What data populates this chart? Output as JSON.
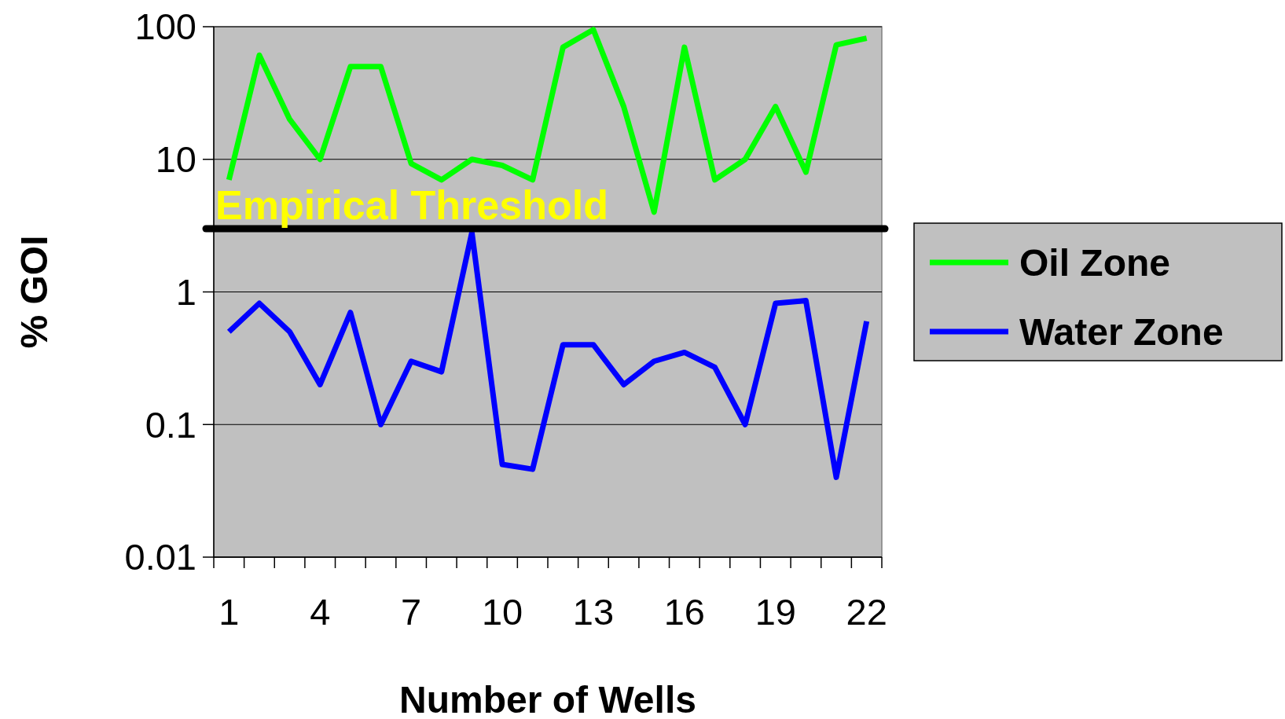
{
  "chart_data": {
    "type": "line",
    "xlabel": "Number of Wells",
    "ylabel": "% GOI",
    "categories": [
      "1",
      null,
      null,
      "4",
      null,
      null,
      "7",
      null,
      null,
      "10",
      null,
      null,
      "13",
      null,
      null,
      "16",
      null,
      null,
      "19",
      null,
      null,
      "22"
    ],
    "series": [
      {
        "name": "Oil Zone",
        "color": "#00ff00",
        "values": [
          7,
          61,
          20,
          10,
          50,
          50,
          9.3,
          7,
          10,
          9,
          7,
          70,
          95,
          25,
          4,
          70,
          7,
          10,
          25,
          8,
          73,
          82
        ]
      },
      {
        "name": "Water Zone",
        "color": "#0000ff",
        "values": [
          0.5,
          0.82,
          0.5,
          0.2,
          0.7,
          0.1,
          0.3,
          0.25,
          2.8,
          0.05,
          0.046,
          0.4,
          0.4,
          0.2,
          0.3,
          0.35,
          0.27,
          0.1,
          0.82,
          0.86,
          0.04,
          0.6
        ]
      }
    ],
    "log": "y",
    "ylim": [
      0.01,
      100
    ],
    "yticks": [
      0.01,
      0.1,
      1,
      10,
      100
    ],
    "grid": "y",
    "legend": "right",
    "marker": "none",
    "line_style": "solid",
    "ref_lines": [
      {
        "axis": "y",
        "value": 3,
        "label": "Empirical Threshold",
        "color": "#000000"
      }
    ]
  }
}
